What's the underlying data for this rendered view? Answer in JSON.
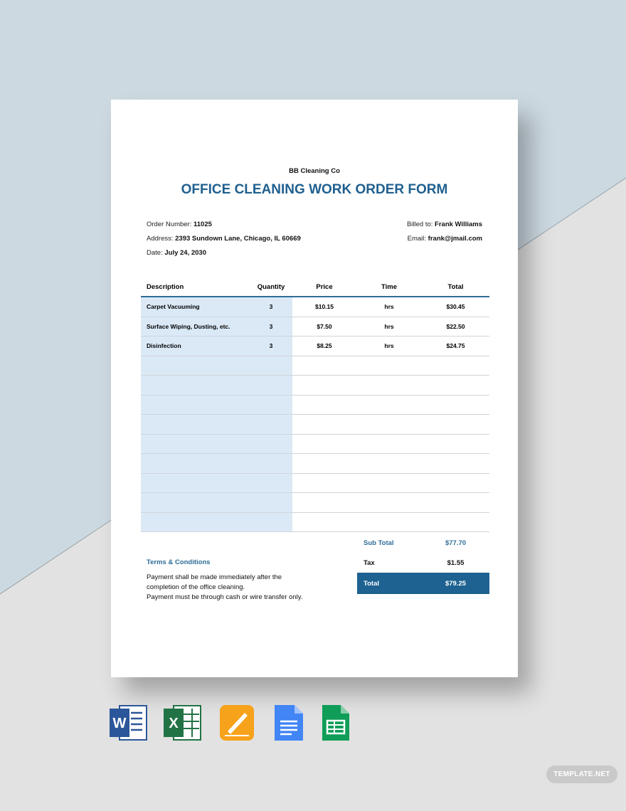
{
  "document": {
    "company": "BB Cleaning Co",
    "title": "OFFICE CLEANING WORK ORDER FORM",
    "order_number_label": "Order Number:",
    "order_number": "11025",
    "address_label": "Address:",
    "address": "2393 Sundown Lane, Chicago, IL 60669",
    "date_label": "Date:",
    "date": "July 24, 2030",
    "billed_to_label": "Billed to:",
    "billed_to": "Frank Williams",
    "email_label": "Email:",
    "email": "frank@jmail.com"
  },
  "table": {
    "headers": [
      "Description",
      "Quantity",
      "Price",
      "Time",
      "Total"
    ],
    "rows": [
      [
        "Carpet Vacuuming",
        "3",
        "$10.15",
        "hrs",
        "$30.45"
      ],
      [
        "Surface Wiping, Dusting, etc.",
        "3",
        "$7.50",
        "hrs",
        "$22.50"
      ],
      [
        "Disinfection",
        "3",
        "$8.25",
        "hrs",
        "$24.75"
      ]
    ]
  },
  "summary": {
    "subtotal_label": "Sub Total",
    "subtotal": "$77.70",
    "tax_label": "Tax",
    "tax": "$1.55",
    "total_label": "Total",
    "total": "$79.25"
  },
  "terms": {
    "heading": "Terms & Conditions",
    "line1": "Payment shall be made immediately after the completion of the office cleaning.",
    "line2": "Payment must be through cash or wire transfer only."
  },
  "formats": [
    "word-icon",
    "excel-icon",
    "pages-icon",
    "google-docs-icon",
    "google-sheets-icon"
  ],
  "badge": "TEMPLATE.NET",
  "colors": {
    "accent": "#1f5f8f",
    "total_bg": "#1d6291",
    "column_bg": "#dbe9f7",
    "bg_blue": "#cdd9e1",
    "bg_gray": "#e2e2e2"
  }
}
